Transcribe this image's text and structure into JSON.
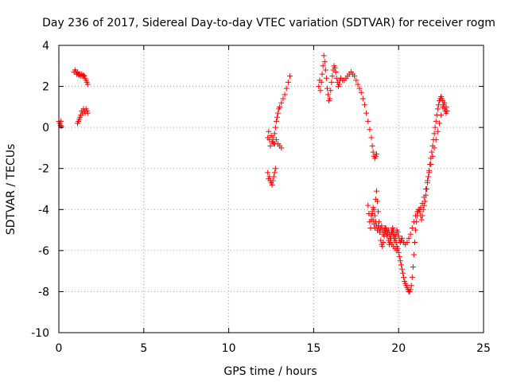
{
  "chart_data": {
    "type": "scatter",
    "title": "Day 236 of 2017, Sidereal Day-to-day VTEC variation (SDTVAR) for receiver rogm",
    "xlabel": "GPS time / hours",
    "ylabel": "SDTVAR / TECUs",
    "xlim": [
      0,
      25
    ],
    "ylim": [
      -10,
      4
    ],
    "xticks": [
      0,
      5,
      10,
      15,
      20,
      25
    ],
    "yticks": [
      -10,
      -8,
      -6,
      -4,
      -2,
      0,
      2,
      4
    ],
    "grid": true,
    "marker": "+",
    "colors": {
      "points": "#ff0000",
      "grid": "#a0a0a0",
      "axes": "#000000"
    },
    "segments": [
      {
        "points": [
          [
            0.0,
            0.3
          ],
          [
            0.05,
            0.2
          ],
          [
            0.1,
            0.1
          ],
          [
            0.12,
            0.3
          ],
          [
            0.15,
            0.05
          ]
        ]
      },
      {
        "points": [
          [
            0.9,
            2.7
          ],
          [
            0.95,
            2.8
          ],
          [
            1.0,
            2.7
          ],
          [
            1.05,
            2.6
          ],
          [
            1.1,
            2.7
          ],
          [
            1.15,
            2.6
          ],
          [
            1.2,
            2.55
          ],
          [
            1.25,
            2.6
          ],
          [
            1.3,
            2.5
          ],
          [
            1.35,
            2.6
          ],
          [
            1.4,
            2.5
          ],
          [
            1.45,
            2.55
          ],
          [
            1.5,
            2.5
          ],
          [
            1.55,
            2.4
          ],
          [
            1.6,
            2.3
          ],
          [
            1.65,
            2.2
          ],
          [
            1.7,
            2.1
          ]
        ]
      },
      {
        "points": [
          [
            1.1,
            0.2
          ],
          [
            1.15,
            0.3
          ],
          [
            1.2,
            0.4
          ],
          [
            1.25,
            0.5
          ],
          [
            1.3,
            0.6
          ],
          [
            1.35,
            0.8
          ],
          [
            1.4,
            0.7
          ],
          [
            1.45,
            0.9
          ],
          [
            1.5,
            0.8
          ],
          [
            1.55,
            0.7
          ],
          [
            1.6,
            0.9
          ],
          [
            1.65,
            0.8
          ],
          [
            1.7,
            0.7
          ]
        ]
      },
      {
        "points": [
          [
            12.3,
            -0.5
          ],
          [
            12.35,
            -0.2
          ],
          [
            12.4,
            -0.6
          ],
          [
            12.45,
            -0.9
          ],
          [
            12.5,
            -0.4
          ],
          [
            12.55,
            -0.7
          ],
          [
            12.6,
            -0.5
          ],
          [
            12.65,
            -0.8
          ],
          [
            12.7,
            -0.3
          ],
          [
            12.75,
            0.0
          ],
          [
            12.8,
            0.3
          ],
          [
            12.85,
            0.5
          ],
          [
            12.9,
            0.7
          ],
          [
            12.95,
            0.9
          ],
          [
            13.0,
            1.0
          ],
          [
            13.1,
            1.2
          ],
          [
            13.2,
            1.4
          ],
          [
            13.3,
            1.6
          ],
          [
            13.4,
            1.9
          ],
          [
            13.5,
            2.2
          ],
          [
            13.6,
            2.5
          ]
        ]
      },
      {
        "points": [
          [
            12.6,
            -0.7
          ],
          [
            12.7,
            -0.8
          ],
          [
            12.8,
            -0.6
          ],
          [
            12.9,
            -0.8
          ],
          [
            13.0,
            -0.9
          ],
          [
            13.1,
            -1.0
          ]
        ]
      },
      {
        "points": [
          [
            12.3,
            -2.2
          ],
          [
            12.35,
            -2.5
          ],
          [
            12.4,
            -2.4
          ],
          [
            12.45,
            -2.6
          ],
          [
            12.5,
            -2.7
          ],
          [
            12.55,
            -2.8
          ],
          [
            12.6,
            -2.6
          ],
          [
            12.65,
            -2.4
          ],
          [
            12.7,
            -2.2
          ],
          [
            12.75,
            -2.0
          ]
        ]
      },
      {
        "points": [
          [
            15.3,
            2.0
          ],
          [
            15.35,
            2.3
          ],
          [
            15.4,
            1.8
          ],
          [
            15.45,
            2.2
          ],
          [
            15.5,
            2.6
          ],
          [
            15.55,
            3.0
          ],
          [
            15.6,
            3.5
          ],
          [
            15.65,
            3.2
          ],
          [
            15.7,
            2.8
          ],
          [
            15.75,
            2.4
          ],
          [
            15.8,
            1.9
          ],
          [
            15.85,
            1.6
          ],
          [
            15.9,
            1.3
          ],
          [
            15.95,
            1.4
          ],
          [
            16.0,
            1.8
          ],
          [
            16.05,
            2.2
          ],
          [
            16.1,
            2.5
          ],
          [
            16.15,
            2.8
          ],
          [
            16.2,
            3.0
          ],
          [
            16.25,
            2.9
          ],
          [
            16.3,
            2.7
          ],
          [
            16.35,
            2.4
          ],
          [
            16.4,
            2.2
          ],
          [
            16.45,
            2.0
          ],
          [
            16.5,
            2.1
          ],
          [
            16.55,
            2.3
          ],
          [
            16.6,
            2.4
          ],
          [
            16.7,
            2.3
          ],
          [
            16.8,
            2.3
          ],
          [
            16.9,
            2.4
          ],
          [
            17.0,
            2.5
          ],
          [
            17.1,
            2.6
          ],
          [
            17.2,
            2.7
          ],
          [
            17.3,
            2.6
          ],
          [
            17.4,
            2.5
          ],
          [
            17.5,
            2.3
          ],
          [
            17.6,
            2.1
          ],
          [
            17.7,
            1.9
          ],
          [
            17.8,
            1.7
          ],
          [
            17.9,
            1.4
          ],
          [
            18.0,
            1.1
          ],
          [
            18.1,
            0.7
          ],
          [
            18.2,
            0.3
          ],
          [
            18.3,
            -0.1
          ],
          [
            18.4,
            -0.5
          ],
          [
            18.45,
            -0.9
          ],
          [
            18.5,
            -1.2
          ],
          [
            18.55,
            -1.4
          ],
          [
            18.6,
            -1.5
          ],
          [
            18.65,
            -1.4
          ],
          [
            18.7,
            -1.3
          ]
        ]
      },
      {
        "points": [
          [
            18.2,
            -3.8
          ],
          [
            18.25,
            -4.2
          ],
          [
            18.3,
            -4.6
          ],
          [
            18.35,
            -4.9
          ],
          [
            18.4,
            -4.5
          ],
          [
            18.45,
            -4.2
          ],
          [
            18.5,
            -3.9
          ],
          [
            18.55,
            -4.0
          ],
          [
            18.6,
            -4.3
          ],
          [
            18.65,
            -3.5
          ],
          [
            18.7,
            -3.1
          ],
          [
            18.75,
            -3.6
          ],
          [
            18.8,
            -4.1
          ],
          [
            18.85,
            -4.6
          ],
          [
            18.9,
            -5.1
          ],
          [
            18.95,
            -5.5
          ],
          [
            19.0,
            -5.7
          ],
          [
            19.05,
            -5.8
          ],
          [
            19.1,
            -5.6
          ],
          [
            19.15,
            -5.3
          ],
          [
            19.2,
            -5.1
          ],
          [
            19.25,
            -4.9
          ],
          [
            19.3,
            -5.0
          ],
          [
            19.35,
            -5.2
          ],
          [
            19.4,
            -5.5
          ],
          [
            19.45,
            -5.7
          ],
          [
            19.5,
            -5.6
          ],
          [
            19.55,
            -5.4
          ],
          [
            19.6,
            -5.1
          ],
          [
            19.65,
            -4.9
          ],
          [
            19.7,
            -5.0
          ],
          [
            19.75,
            -5.2
          ],
          [
            19.8,
            -5.4
          ],
          [
            19.85,
            -5.6
          ],
          [
            19.9,
            -5.8
          ],
          [
            19.95,
            -5.9
          ]
        ]
      },
      {
        "points": [
          [
            18.4,
            -4.3
          ],
          [
            18.45,
            -4.1
          ],
          [
            18.5,
            -4.5
          ],
          [
            18.55,
            -4.7
          ],
          [
            18.6,
            -4.9
          ],
          [
            18.65,
            -4.6
          ],
          [
            18.7,
            -4.8
          ],
          [
            18.75,
            -5.0
          ],
          [
            18.8,
            -4.8
          ],
          [
            18.85,
            -4.9
          ],
          [
            18.9,
            -5.1
          ],
          [
            18.95,
            -4.9
          ],
          [
            19.0,
            -4.8
          ],
          [
            19.05,
            -5.0
          ],
          [
            19.1,
            -5.2
          ],
          [
            19.15,
            -5.0
          ],
          [
            19.2,
            -4.9
          ],
          [
            19.25,
            -5.1
          ],
          [
            19.3,
            -5.3
          ],
          [
            19.35,
            -5.1
          ],
          [
            19.4,
            -5.0
          ],
          [
            19.45,
            -5.2
          ],
          [
            19.5,
            -5.4
          ],
          [
            19.55,
            -5.2
          ],
          [
            19.6,
            -5.0
          ],
          [
            19.65,
            -5.1
          ],
          [
            19.7,
            -5.3
          ],
          [
            19.75,
            -5.5
          ],
          [
            19.8,
            -5.4
          ],
          [
            19.85,
            -5.2
          ],
          [
            19.9,
            -5.0
          ],
          [
            19.95,
            -5.1
          ],
          [
            20.0,
            -5.3
          ],
          [
            20.05,
            -5.5
          ],
          [
            20.1,
            -5.6
          ],
          [
            20.15,
            -5.5
          ],
          [
            20.2,
            -5.4
          ]
        ]
      },
      {
        "points": [
          [
            19.6,
            -5.7
          ],
          [
            19.7,
            -5.8
          ],
          [
            19.8,
            -5.9
          ],
          [
            19.9,
            -6.0
          ],
          [
            20.0,
            -6.1
          ],
          [
            20.05,
            -6.3
          ],
          [
            20.1,
            -6.5
          ],
          [
            20.15,
            -6.7
          ],
          [
            20.2,
            -6.9
          ],
          [
            20.25,
            -7.1
          ],
          [
            20.3,
            -7.3
          ],
          [
            20.35,
            -7.5
          ],
          [
            20.4,
            -7.6
          ],
          [
            20.45,
            -7.7
          ],
          [
            20.5,
            -7.8
          ],
          [
            20.55,
            -7.9
          ],
          [
            20.6,
            -8.0
          ],
          [
            20.65,
            -8.0
          ],
          [
            20.7,
            -7.9
          ],
          [
            20.75,
            -7.7
          ],
          [
            20.8,
            -7.3
          ],
          [
            20.85,
            -6.8
          ],
          [
            20.9,
            -6.2
          ],
          [
            20.95,
            -5.6
          ],
          [
            21.0,
            -5.0
          ],
          [
            21.05,
            -4.6
          ],
          [
            21.1,
            -4.3
          ],
          [
            21.15,
            -4.1
          ],
          [
            21.2,
            -4.0
          ],
          [
            21.25,
            -4.1
          ],
          [
            21.3,
            -4.3
          ],
          [
            21.35,
            -4.5
          ],
          [
            21.4,
            -4.3
          ],
          [
            21.45,
            -4.0
          ],
          [
            21.5,
            -3.8
          ],
          [
            21.55,
            -3.6
          ],
          [
            21.6,
            -3.3
          ],
          [
            21.65,
            -3.0
          ],
          [
            21.7,
            -2.7
          ],
          [
            21.75,
            -2.4
          ],
          [
            21.8,
            -2.1
          ],
          [
            21.85,
            -1.8
          ],
          [
            21.9,
            -1.5
          ],
          [
            21.95,
            -1.2
          ],
          [
            22.0,
            -0.9
          ],
          [
            22.05,
            -0.6
          ],
          [
            22.1,
            -0.3
          ],
          [
            22.15,
            0.0
          ],
          [
            22.2,
            0.3
          ],
          [
            22.25,
            0.6
          ],
          [
            22.3,
            0.9
          ],
          [
            22.35,
            1.1
          ],
          [
            22.4,
            1.3
          ],
          [
            22.45,
            1.4
          ],
          [
            22.5,
            1.5
          ],
          [
            22.55,
            1.4
          ],
          [
            22.6,
            1.3
          ],
          [
            22.65,
            1.1
          ],
          [
            22.7,
            0.9
          ],
          [
            22.75,
            0.8
          ],
          [
            22.8,
            0.7
          ]
        ]
      },
      {
        "points": [
          [
            20.2,
            -5.5
          ],
          [
            20.3,
            -5.6
          ],
          [
            20.4,
            -5.7
          ],
          [
            20.5,
            -5.6
          ],
          [
            20.6,
            -5.4
          ],
          [
            20.7,
            -5.2
          ],
          [
            20.8,
            -4.9
          ],
          [
            20.9,
            -4.6
          ],
          [
            21.0,
            -4.3
          ],
          [
            21.1,
            -4.1
          ],
          [
            21.2,
            -4.0
          ],
          [
            21.3,
            -3.9
          ],
          [
            21.4,
            -3.7
          ],
          [
            21.5,
            -3.4
          ],
          [
            21.6,
            -3.0
          ],
          [
            21.7,
            -2.6
          ],
          [
            21.8,
            -2.2
          ],
          [
            21.9,
            -1.8
          ],
          [
            22.0,
            -1.4
          ],
          [
            22.1,
            -1.0
          ],
          [
            22.2,
            -0.6
          ],
          [
            22.3,
            -0.2
          ],
          [
            22.4,
            0.2
          ],
          [
            22.5,
            0.6
          ],
          [
            22.6,
            1.0
          ],
          [
            22.7,
            1.2
          ],
          [
            22.8,
            1.0
          ],
          [
            22.85,
            0.8
          ]
        ]
      }
    ]
  }
}
